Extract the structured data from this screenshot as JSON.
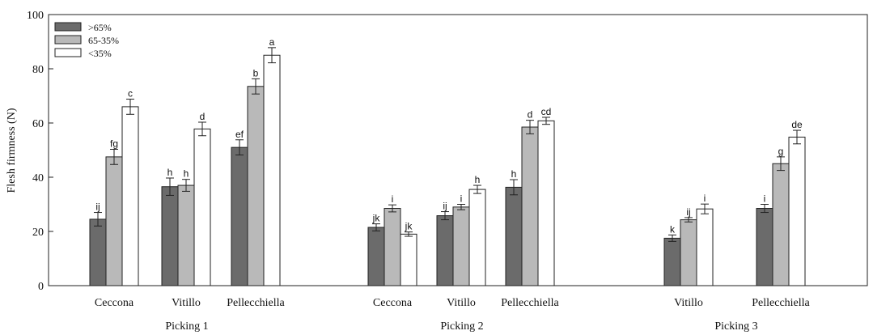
{
  "chart_data": {
    "type": "bar",
    "ylabel": "Flesh firmness (N)",
    "xlabel": "",
    "ylim": [
      0,
      100
    ],
    "yticks": [
      0,
      20,
      40,
      60,
      80,
      100
    ],
    "grid": false,
    "legend_position": "top-left",
    "series": [
      {
        "name": ">65%",
        "color": "#6b6b6b"
      },
      {
        "name": "65-35%",
        "color": "#b9b9b9"
      },
      {
        "name": "<35%",
        "color": "#ffffff"
      }
    ],
    "groups": [
      {
        "label": "Picking 1",
        "categories": [
          {
            "label": "Ceccona",
            "values": [
              24.5,
              47.5,
              66
            ],
            "errors": [
              2.5,
              2.8,
              2.8
            ],
            "letters": [
              "ij",
              "fg",
              "c"
            ]
          },
          {
            "label": "Vitillo",
            "values": [
              36.5,
              37,
              57.8
            ],
            "errors": [
              3.2,
              2.2,
              2.5
            ],
            "letters": [
              "h",
              "h",
              "d"
            ]
          },
          {
            "label": "Pellecchiella",
            "values": [
              51,
              73.5,
              85
            ],
            "errors": [
              2.8,
              2.8,
              2.8
            ],
            "letters": [
              "ef",
              "b",
              "a"
            ]
          }
        ]
      },
      {
        "label": "Picking 2",
        "categories": [
          {
            "label": "Ceccona",
            "values": [
              21.5,
              28.5,
              19
            ],
            "errors": [
              1.3,
              1.3,
              0.8
            ],
            "letters": [
              "jk",
              "i",
              "jk"
            ]
          },
          {
            "label": "Vitillo",
            "values": [
              25.8,
              29,
              35.5
            ],
            "errors": [
              1.5,
              1,
              1.5
            ],
            "letters": [
              "ij",
              "i",
              "h"
            ]
          },
          {
            "label": "Pellecchiella",
            "values": [
              36.3,
              58.5,
              60.8
            ],
            "errors": [
              2.8,
              2.5,
              1.3
            ],
            "letters": [
              "h",
              "d",
              "cd"
            ]
          }
        ]
      },
      {
        "label": "Picking 3",
        "categories": [
          {
            "label": "Vitillo",
            "values": [
              17.5,
              24.3,
              28.3
            ],
            "errors": [
              1.2,
              0.8,
              1.8
            ],
            "letters": [
              "k",
              "ij",
              "i"
            ]
          },
          {
            "label": "Pellecchiella",
            "values": [
              28.5,
              45,
              54.8
            ],
            "errors": [
              1.5,
              2.5,
              2.5
            ],
            "letters": [
              "i",
              "g",
              "de"
            ]
          }
        ]
      }
    ]
  }
}
